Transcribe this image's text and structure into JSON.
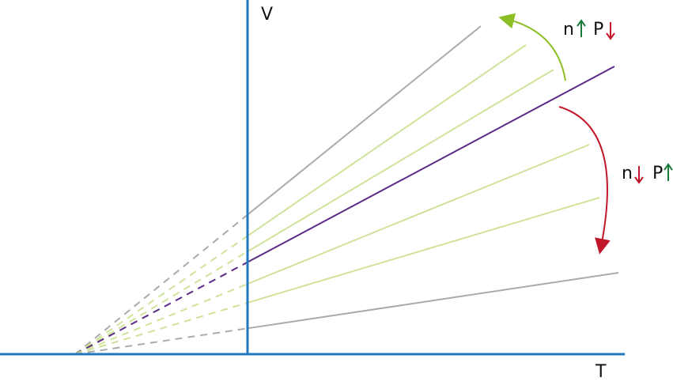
{
  "axes": {
    "y_label": "V",
    "x_label": "T"
  },
  "annotations": [
    {
      "first": "n",
      "second": "P"
    },
    {
      "first": "n",
      "second": "P"
    }
  ]
}
